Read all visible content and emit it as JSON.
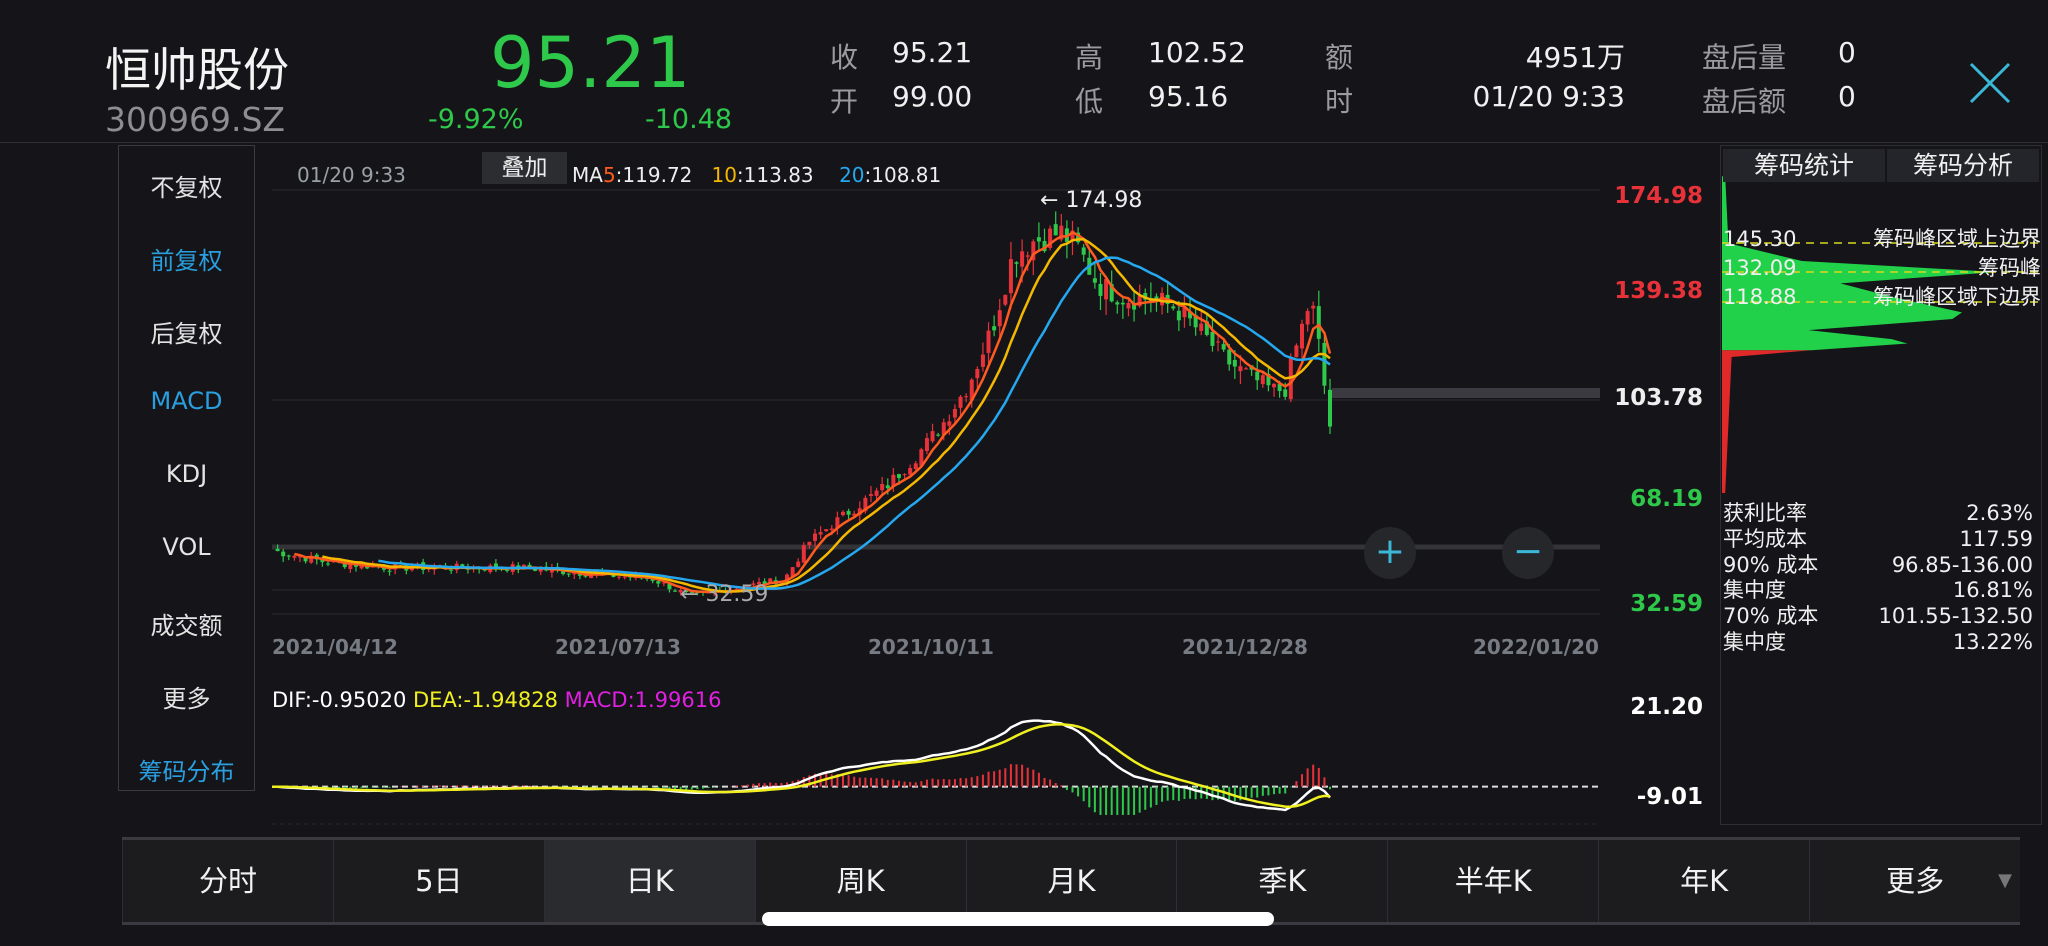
{
  "header": {
    "name": "恒帅股份",
    "code": "300969.SZ",
    "price": "95.21",
    "change_pct": "-9.92%",
    "change": "-10.48",
    "stats": [
      {
        "label": "收",
        "value": "95.21"
      },
      {
        "label": "开",
        "value": "99.00"
      },
      {
        "label": "高",
        "value": "102.52"
      },
      {
        "label": "低",
        "value": "95.16"
      },
      {
        "label": "额",
        "value": "4951万"
      },
      {
        "label": "时",
        "value": "01/20 9:33"
      },
      {
        "label": "盘后量",
        "value": "0"
      },
      {
        "label": "盘后额",
        "value": "0"
      }
    ],
    "close_icon": "close-x-icon"
  },
  "sidebar": {
    "items": [
      {
        "label": "不复权",
        "active": false
      },
      {
        "label": "前复权",
        "active": true
      },
      {
        "label": "后复权",
        "active": false
      },
      {
        "label": "MACD",
        "active": true
      },
      {
        "label": "KDJ",
        "active": false
      },
      {
        "label": "VOL",
        "active": false
      },
      {
        "label": "成交额",
        "active": false
      },
      {
        "label": "更多",
        "active": false
      },
      {
        "label": "筹码分布",
        "active": true
      }
    ]
  },
  "chart": {
    "time": "01/20 9:33",
    "overlay_label": "叠加",
    "ma": {
      "prefix": "MA",
      "ma5_key": "5",
      "ma5": ":119.72",
      "ma10_key": "10",
      "ma10": ":113.83",
      "ma20_key": "20",
      "ma20": ":108.81"
    },
    "high_marker": "174.98",
    "low_marker": "32.59",
    "y_labels": [
      "174.98",
      "139.38",
      "103.78",
      "68.19",
      "32.59"
    ],
    "date_labels": [
      "2021/04/12",
      "2021/07/13",
      "2021/10/11",
      "2021/12/28",
      "2022/01/20"
    ],
    "zoom_in": "+",
    "zoom_out": "−",
    "macd": {
      "dif": "DIF:-0.95020",
      "dea": "DEA:-1.94828",
      "macd": "MACD:1.99616",
      "y_top": "21.20",
      "y_bottom": "-9.01"
    }
  },
  "colors": {
    "up": "#e8323a",
    "down": "#2ec84a",
    "ma5": "#ff5a1f",
    "ma10": "#f5b800",
    "ma20": "#25a8f0",
    "dif": "#ffffff",
    "dea": "#f0f020",
    "macd": "#e020e0",
    "accent": "#2a9fe0"
  },
  "chart_data": {
    "type": "candlestick",
    "ylim": [
      32.59,
      174.98
    ],
    "x_ticks": [
      "2021/04/12",
      "2021/07/13",
      "2021/10/11",
      "2021/12/28",
      "2022/01/20"
    ],
    "close": [
      [
        "2021-04-12",
        52
      ],
      [
        "2021-04-29",
        48
      ],
      [
        "2021-05-20",
        46
      ],
      [
        "2021-07-02",
        46
      ],
      [
        "2021-08-10",
        42
      ],
      [
        "2021-08-21",
        36
      ],
      [
        "2021-09-17",
        42
      ],
      [
        "2021-09-24",
        55
      ],
      [
        "2021-10-05",
        65
      ],
      [
        "2021-10-16",
        75
      ],
      [
        "2021-10-23",
        85
      ],
      [
        "2021-10-29",
        95
      ],
      [
        "2021-11-05",
        110
      ],
      [
        "2021-11-11",
        130
      ],
      [
        "2021-11-16",
        155
      ],
      [
        "2021-11-21",
        160
      ],
      [
        "2021-11-28",
        163
      ],
      [
        "2021-12-02",
        158
      ],
      [
        "2021-12-07",
        145
      ],
      [
        "2021-12-14",
        140
      ],
      [
        "2021-12-20",
        140
      ],
      [
        "2021-12-26",
        137
      ],
      [
        "2021-12-31",
        128
      ],
      [
        "2022-01-04",
        118
      ],
      [
        "2022-01-08",
        112
      ],
      [
        "2022-01-11",
        108
      ],
      [
        "2022-01-13",
        108
      ],
      [
        "2022-01-15",
        125
      ],
      [
        "2022-01-17",
        140
      ],
      [
        "2022-01-18",
        128
      ],
      [
        "2022-01-20",
        95.21
      ]
    ],
    "chip_distribution": [
      [
        175,
        0.01
      ],
      [
        145,
        0.02
      ],
      [
        137,
        0.25
      ],
      [
        132.09,
        0.86
      ],
      [
        127,
        0.37
      ],
      [
        121,
        0.53
      ],
      [
        114,
        0.75
      ],
      [
        111,
        0.72
      ],
      [
        106,
        0.27
      ],
      [
        102,
        0.53
      ],
      [
        100,
        0.58
      ],
      [
        97,
        0.28
      ]
    ],
    "chip_profit_below": [
      [
        97,
        0.28
      ],
      [
        94,
        0.03
      ],
      [
        33,
        0.01
      ]
    ]
  },
  "chip_panel": {
    "tabs": [
      "筹码统计",
      "筹码分析"
    ],
    "levels": [
      {
        "price": "145.30",
        "label": "筹码峰区域上边界"
      },
      {
        "price": "132.09",
        "label": "筹码峰"
      },
      {
        "price": "118.88",
        "label": "筹码峰区域下边界"
      }
    ],
    "stats": [
      {
        "label": "获利比率",
        "value": "2.63%"
      },
      {
        "label": "平均成本",
        "value": "117.59"
      },
      {
        "label": "90% 成本",
        "value": "96.85-136.00"
      },
      {
        "label": "集中度",
        "value": "16.81%"
      },
      {
        "label": "70% 成本",
        "value": "101.55-132.50"
      },
      {
        "label": "集中度",
        "value": "13.22%"
      }
    ]
  },
  "period_tabs": [
    {
      "label": "分时"
    },
    {
      "label": "5日"
    },
    {
      "label": "日K",
      "active": true
    },
    {
      "label": "周K"
    },
    {
      "label": "月K"
    },
    {
      "label": "季K"
    },
    {
      "label": "半年K"
    },
    {
      "label": "年K"
    },
    {
      "label": "更多",
      "dropdown": true
    }
  ]
}
